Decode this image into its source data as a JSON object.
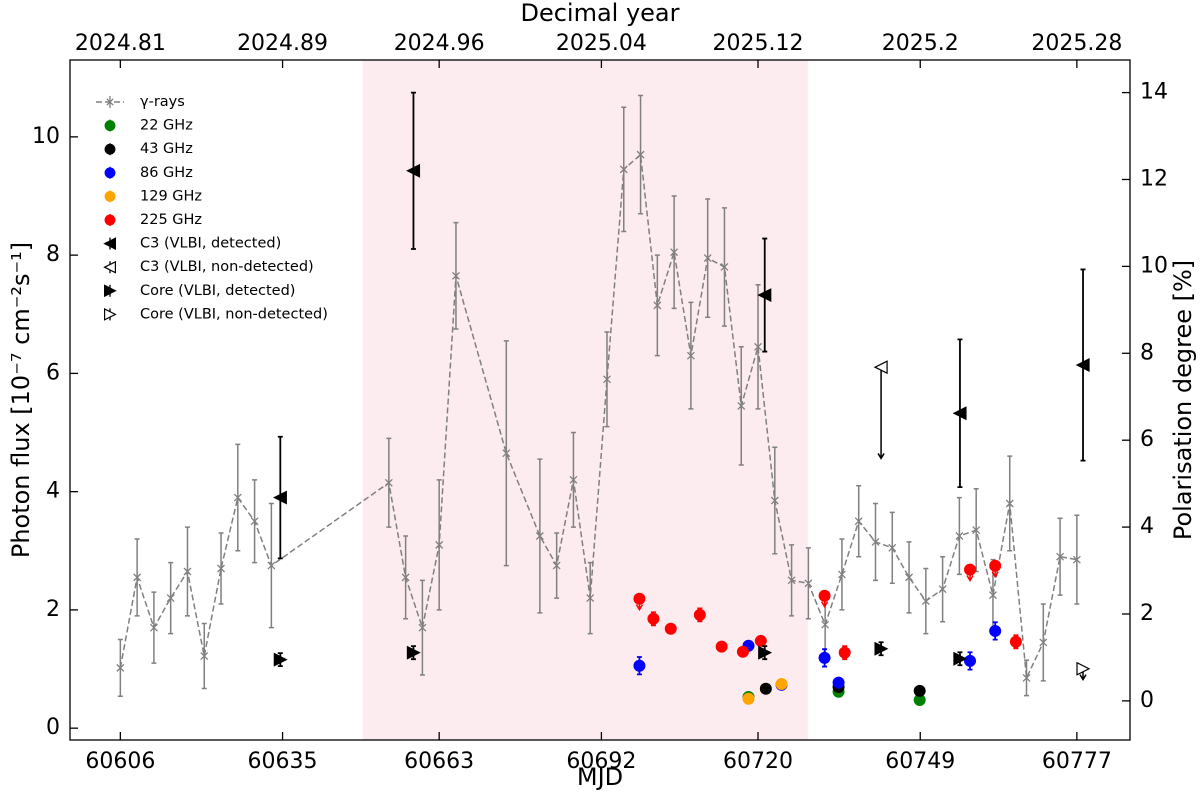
{
  "chart_data": {
    "type": "scatter",
    "xlabel": "MJD",
    "x2label": "Decimal year",
    "ylabel": "Photon flux [10⁻⁷ cm⁻²s⁻¹]",
    "y2label": "Polarisation degree [%]",
    "xlim": [
      60597,
      60786.5
    ],
    "ylim": [
      -0.2,
      11.3
    ],
    "y2lim": [
      -0.9,
      14.75
    ],
    "xticks": [
      60606,
      60635,
      60663,
      60692,
      60720,
      60749,
      60777
    ],
    "x2ticks": [
      {
        "value": 60606,
        "label": "2024.81"
      },
      {
        "value": 60635,
        "label": "2024.89"
      },
      {
        "value": 60663,
        "label": "2024.96"
      },
      {
        "value": 60692,
        "label": "2025.04"
      },
      {
        "value": 60720,
        "label": "2025.12"
      },
      {
        "value": 60749,
        "label": "2025.2"
      },
      {
        "value": 60777,
        "label": "2025.28"
      }
    ],
    "yticks": [
      0,
      2,
      4,
      6,
      8,
      10
    ],
    "y2ticks": [
      0,
      2,
      4,
      6,
      8,
      10,
      12,
      14
    ],
    "shaded_span": [
      60649.3,
      60728.9
    ],
    "shade_color": "#fcecf0",
    "legend": "upper left",
    "series": [
      {
        "name": "γ-rays",
        "color": "#808080",
        "marker": "x",
        "filled": true,
        "line": "dashed",
        "axis": "y",
        "x": [
          60606,
          60609,
          60612,
          60615,
          60618,
          60621,
          60624,
          60627,
          60630,
          60633,
          60654,
          60657,
          60660,
          60663,
          60666,
          60675,
          60681,
          60684,
          60687,
          60690,
          60693,
          60696,
          60699,
          60702,
          60705,
          60708,
          60711,
          60714,
          60717,
          60720,
          60723,
          60726,
          60729,
          60732,
          60735,
          60738,
          60741,
          60744,
          60747,
          60750,
          60753,
          60756,
          60759,
          60762,
          60765,
          60768,
          60771,
          60774,
          60777
        ],
        "values": [
          1.02,
          2.55,
          1.7,
          2.2,
          2.65,
          1.22,
          2.7,
          3.9,
          3.5,
          2.75,
          4.15,
          2.55,
          1.7,
          3.1,
          7.65,
          4.65,
          3.25,
          2.75,
          4.2,
          2.2,
          5.9,
          9.45,
          9.7,
          7.15,
          8.05,
          6.3,
          7.95,
          7.8,
          5.45,
          6.45,
          3.85,
          2.5,
          2.45,
          1.75,
          2.6,
          3.5,
          3.15,
          3.05,
          2.55,
          2.15,
          2.35,
          3.25,
          3.35,
          2.25,
          3.8,
          0.85,
          1.45,
          2.9,
          2.85
        ],
        "errors": [
          0.48,
          0.65,
          0.6,
          0.6,
          0.75,
          0.55,
          0.6,
          0.9,
          0.7,
          1.05,
          0.75,
          0.7,
          0.8,
          1.1,
          0.9,
          1.9,
          1.3,
          0.55,
          0.8,
          0.6,
          0.8,
          1.05,
          1.0,
          0.85,
          0.95,
          0.9,
          1.0,
          1.0,
          1.0,
          1.05,
          0.9,
          0.6,
          0.6,
          0.55,
          0.6,
          0.6,
          0.65,
          0.6,
          0.6,
          0.55,
          0.55,
          0.65,
          0.7,
          0.6,
          0.8,
          0.3,
          0.65,
          0.65,
          0.75
        ]
      },
      {
        "name": "22 GHz",
        "color": "#008000",
        "marker": "o",
        "filled": true,
        "axis": "y2",
        "x": [
          60718.3,
          60734.4,
          60748.9
        ],
        "values": [
          0.09,
          0.21,
          0.02
        ],
        "errors": [
          0.05,
          0.05,
          0.05
        ]
      },
      {
        "name": "43 GHz",
        "color": "#000000",
        "marker": "o",
        "filled": true,
        "axis": "y2",
        "x": [
          60721.4,
          60734.4,
          60748.9
        ],
        "values": [
          0.28,
          0.32,
          0.23
        ],
        "errors": [
          0.05,
          0.05,
          0.05
        ]
      },
      {
        "name": "86 GHz",
        "color": "#0000ff",
        "marker": "o",
        "filled": true,
        "axis": "y2",
        "x": [
          60698.8,
          60718.3,
          60724.2,
          60731.9,
          60734.4,
          60757.9,
          60762.4
        ],
        "values": [
          0.81,
          1.27,
          0.37,
          0.99,
          0.42,
          0.92,
          1.61
        ],
        "errors": [
          0.2,
          0.1,
          0.05,
          0.2,
          0.1,
          0.2,
          0.2
        ]
      },
      {
        "name": "129 GHz",
        "color": "#ffa500",
        "marker": "o",
        "filled": true,
        "axis": "y2",
        "x": [
          60718.3,
          60724.2
        ],
        "values": [
          0.05,
          0.39
        ],
        "errors": [
          0.05,
          0.08
        ]
      },
      {
        "name": "225 GHz",
        "color": "#ff0000",
        "marker": "o",
        "filled": true,
        "axis": "y2",
        "x": [
          60698.8,
          60701.3,
          60704.4,
          60709.6,
          60713.5,
          60717.3,
          60720.5,
          60731.9,
          60735.5,
          60757.9,
          60762.4,
          60766.1
        ],
        "values": [
          2.35,
          1.89,
          1.66,
          1.98,
          1.25,
          1.13,
          1.38,
          2.42,
          1.11,
          3.02,
          3.11,
          1.36
        ],
        "errors": [
          0.25,
          0.15,
          0.1,
          0.15,
          0.08,
          0.08,
          0.08,
          0.25,
          0.15,
          0.25,
          0.25,
          0.15
        ],
        "upper_limits": [
          true,
          false,
          false,
          false,
          false,
          false,
          false,
          true,
          false,
          true,
          true,
          false
        ]
      },
      {
        "name": "C3 (VLBI, detected)",
        "color": "#000000",
        "marker": "<",
        "filled": true,
        "axis": "y2",
        "x": [
          60634.6,
          60658.4,
          60721.2,
          60756.1,
          60778.1
        ],
        "values": [
          4.68,
          12.2,
          9.34,
          6.62,
          7.73
        ],
        "errors": [
          1.4,
          1.8,
          1.3,
          1.7,
          2.2
        ]
      },
      {
        "name": "C3 (VLBI, non-detected)",
        "color": "#000000",
        "marker": "<",
        "filled": false,
        "axis": "y2",
        "x": [
          60742.0
        ],
        "values": [
          7.68
        ],
        "errors": [
          2.1
        ],
        "upper_limits": [
          true
        ]
      },
      {
        "name": "Core (VLBI, detected)",
        "color": "#000000",
        "marker": ">",
        "filled": true,
        "axis": "y2",
        "x": [
          60634.6,
          60658.4,
          60721.2,
          60742.0,
          60756.1
        ],
        "values": [
          0.95,
          1.11,
          1.11,
          1.2,
          0.97
        ],
        "errors": [
          0.15,
          0.15,
          0.15,
          0.15,
          0.15
        ]
      },
      {
        "name": "Core (VLBI, non-detected)",
        "color": "#000000",
        "marker": ">",
        "filled": false,
        "axis": "y2",
        "x": [
          60778.1
        ],
        "values": [
          0.74
        ],
        "errors": [
          0.25
        ],
        "upper_limits": [
          true
        ]
      }
    ]
  }
}
